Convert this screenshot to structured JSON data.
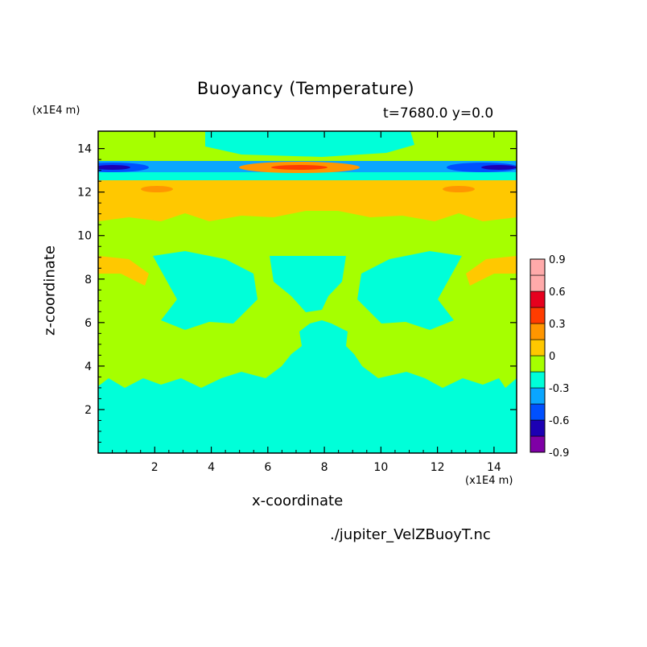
{
  "header": {
    "title": "Buoyancy (Temperature)",
    "timestamp": "t=7680.0 y=0.0",
    "z_unit": "(x1E4 m)",
    "x_unit": "(x1E4 m)",
    "source_file": "./jupiter_VelZBuoyT.nc"
  },
  "chart_data": {
    "type": "heatmap",
    "title": "Buoyancy (Temperature)",
    "xlabel": "x-coordinate",
    "ylabel": "z-coordinate",
    "xlim": [
      0,
      14.8
    ],
    "ylim": [
      0,
      14.8
    ],
    "x_ticks": [
      "2",
      "4",
      "6",
      "8",
      "10",
      "12",
      "14"
    ],
    "y_ticks": [
      "2",
      "4",
      "6",
      "8",
      "10",
      "12",
      "14"
    ],
    "colorbar": {
      "levels": [
        -0.9,
        -0.75,
        -0.6,
        -0.45,
        -0.3,
        -0.15,
        0,
        0.15,
        0.3,
        0.45,
        0.6,
        0.75,
        0.9
      ],
      "colors": [
        "#7f00a6",
        "#1c00b3",
        "#0050ff",
        "#0aa6ff",
        "#00ffd9",
        "#a6ff00",
        "#ffc800",
        "#ff9600",
        "#ff3c00",
        "#e6001e",
        "#ffaaaa",
        "#ffaaaa"
      ],
      "tick_labels": [
        "0.9",
        "0.6",
        "0.3",
        "0",
        "-0.3",
        "-0.6",
        "-0.9"
      ]
    },
    "background_band_value": -0.15,
    "features": [
      {
        "kind": "band",
        "z_range": [
          11.3,
          12.6
        ],
        "value": 0.15,
        "description": "warm layer below jet"
      },
      {
        "kind": "band",
        "z_range": [
          12.6,
          13.0
        ],
        "value": -0.3
      },
      {
        "kind": "band",
        "z_range": [
          13.0,
          13.4
        ],
        "value": -0.45
      },
      {
        "kind": "core",
        "x_range": [
          5.5,
          9.0
        ],
        "z": 13.15,
        "value": 0.6
      },
      {
        "kind": "core",
        "x_range": [
          0,
          2.5
        ],
        "z": 13.1,
        "value": -0.75
      },
      {
        "kind": "core",
        "x_range": [
          12.3,
          14.8
        ],
        "z": 13.1,
        "value": -0.75
      }
    ]
  }
}
